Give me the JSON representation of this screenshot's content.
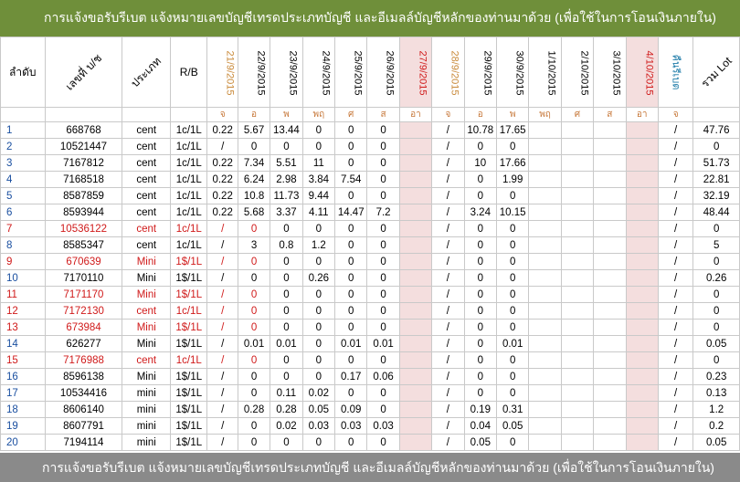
{
  "top_banner": "การแจ้งขอรับรีเบต   แจ้งหมายเลขบัญชีเทรดประเภทบัญชี และอีเมลล์บัญชีหลักของท่านมาด้วย   (เพื่อใช้ในการโอนเงินภายใน)",
  "bottom_banner": "การแจ้งขอรับรีเบต   แจ้งหมายเลขบัญชีเทรดประเภทบัญชี และอีเมลล์บัญชีหลักของท่านมาด้วย   (เพื่อใช้ในการโอนเงินภายใน)",
  "headers": {
    "index": "ลำดับ",
    "account": "เลขที่ บ/ช",
    "type": "ประเภท",
    "rb": "R/B",
    "dates": [
      {
        "label": "21/9/2015",
        "tone": "orange",
        "day": "จ"
      },
      {
        "label": "22/9/2015",
        "tone": "black",
        "day": "อ"
      },
      {
        "label": "23/9/2015",
        "tone": "black",
        "day": "พ"
      },
      {
        "label": "24/9/2015",
        "tone": "black",
        "day": "พฤ"
      },
      {
        "label": "25/9/2015",
        "tone": "black",
        "day": "ศ"
      },
      {
        "label": "26/9/2015",
        "tone": "black",
        "day": "ส"
      },
      {
        "label": "27/9/2015",
        "tone": "red",
        "day": "อา"
      },
      {
        "label": "28/9/2015",
        "tone": "orange",
        "day": "จ"
      },
      {
        "label": "29/9/2015",
        "tone": "black",
        "day": "อ"
      },
      {
        "label": "30/9/2015",
        "tone": "black",
        "day": "พ"
      },
      {
        "label": "1/10/2015",
        "tone": "black",
        "day": "พฤ"
      },
      {
        "label": "2/10/2015",
        "tone": "black",
        "day": "ศ"
      },
      {
        "label": "3/10/2015",
        "tone": "black",
        "day": "ส"
      },
      {
        "label": "4/10/2015",
        "tone": "red",
        "day": "อา"
      },
      {
        "label": "คืนรีเบต",
        "tone": "blue",
        "day": "จ"
      }
    ],
    "total": "รวม Lot"
  },
  "rows": [
    {
      "no": "1",
      "acct": "668768",
      "type": "cent",
      "rb": "1c/1L",
      "red": false,
      "v": [
        "0.22",
        "5.67",
        "13.44",
        "0",
        "0",
        "0",
        "",
        "/",
        "10.78",
        "17.65",
        "",
        "",
        "",
        "",
        "/"
      ],
      "total": "47.76"
    },
    {
      "no": "2",
      "acct": "10521447",
      "type": "cent",
      "rb": "1c/1L",
      "red": false,
      "v": [
        "/",
        "0",
        "0",
        "0",
        "0",
        "0",
        "",
        "/",
        "0",
        "0",
        "",
        "",
        "",
        "",
        "/"
      ],
      "total": "0"
    },
    {
      "no": "3",
      "acct": "7167812",
      "type": "cent",
      "rb": "1c/1L",
      "red": false,
      "v": [
        "0.22",
        "7.34",
        "5.51",
        "11",
        "0",
        "0",
        "",
        "/",
        "10",
        "17.66",
        "",
        "",
        "",
        "",
        "/"
      ],
      "total": "51.73"
    },
    {
      "no": "4",
      "acct": "7168518",
      "type": "cent",
      "rb": "1c/1L",
      "red": false,
      "v": [
        "0.22",
        "6.24",
        "2.98",
        "3.84",
        "7.54",
        "0",
        "",
        "/",
        "0",
        "1.99",
        "",
        "",
        "",
        "",
        "/"
      ],
      "total": "22.81"
    },
    {
      "no": "5",
      "acct": "8587859",
      "type": "cent",
      "rb": "1c/1L",
      "red": false,
      "v": [
        "0.22",
        "10.8",
        "11.73",
        "9.44",
        "0",
        "0",
        "",
        "/",
        "0",
        "0",
        "",
        "",
        "",
        "",
        "/"
      ],
      "total": "32.19"
    },
    {
      "no": "6",
      "acct": "8593944",
      "type": "cent",
      "rb": "1c/1L",
      "red": false,
      "v": [
        "0.22",
        "5.68",
        "3.37",
        "4.11",
        "14.47",
        "7.2",
        "",
        "/",
        "3.24",
        "10.15",
        "",
        "",
        "",
        "",
        "/"
      ],
      "total": "48.44"
    },
    {
      "no": "7",
      "acct": "10536122",
      "type": "cent",
      "rb": "1c/1L",
      "red": true,
      "v": [
        "/",
        "0",
        "0",
        "0",
        "0",
        "0",
        "",
        "/",
        "0",
        "0",
        "",
        "",
        "",
        "",
        "/"
      ],
      "total": "0"
    },
    {
      "no": "8",
      "acct": "8585347",
      "type": "cent",
      "rb": "1c/1L",
      "red": false,
      "v": [
        "/",
        "3",
        "0.8",
        "1.2",
        "0",
        "0",
        "",
        "/",
        "0",
        "0",
        "",
        "",
        "",
        "",
        "/"
      ],
      "total": "5"
    },
    {
      "no": "9",
      "acct": "670639",
      "type": "Mini",
      "rb": "1$/1L",
      "red": true,
      "v": [
        "/",
        "0",
        "0",
        "0",
        "0",
        "0",
        "",
        "/",
        "0",
        "0",
        "",
        "",
        "",
        "",
        "/"
      ],
      "total": "0"
    },
    {
      "no": "10",
      "acct": "7170110",
      "type": "Mini",
      "rb": "1$/1L",
      "red": false,
      "v": [
        "/",
        "0",
        "0",
        "0.26",
        "0",
        "0",
        "",
        "/",
        "0",
        "0",
        "",
        "",
        "",
        "",
        "/"
      ],
      "total": "0.26"
    },
    {
      "no": "11",
      "acct": "7171170",
      "type": "Mini",
      "rb": "1$/1L",
      "red": true,
      "v": [
        "/",
        "0",
        "0",
        "0",
        "0",
        "0",
        "",
        "/",
        "0",
        "0",
        "",
        "",
        "",
        "",
        "/"
      ],
      "total": "0"
    },
    {
      "no": "12",
      "acct": "7172130",
      "type": "cent",
      "rb": "1c/1L",
      "red": true,
      "v": [
        "/",
        "0",
        "0",
        "0",
        "0",
        "0",
        "",
        "/",
        "0",
        "0",
        "",
        "",
        "",
        "",
        "/"
      ],
      "total": "0"
    },
    {
      "no": "13",
      "acct": "673984",
      "type": "Mini",
      "rb": "1$/1L",
      "red": true,
      "v": [
        "/",
        "0",
        "0",
        "0",
        "0",
        "0",
        "",
        "/",
        "0",
        "0",
        "",
        "",
        "",
        "",
        "/"
      ],
      "total": "0"
    },
    {
      "no": "14",
      "acct": "626277",
      "type": "Mini",
      "rb": "1$/1L",
      "red": false,
      "v": [
        "/",
        "0.01",
        "0.01",
        "0",
        "0.01",
        "0.01",
        "",
        "/",
        "0",
        "0.01",
        "",
        "",
        "",
        "",
        "/"
      ],
      "total": "0.05"
    },
    {
      "no": "15",
      "acct": "7176988",
      "type": "cent",
      "rb": "1c/1L",
      "red": true,
      "v": [
        "/",
        "0",
        "0",
        "0",
        "0",
        "0",
        "",
        "/",
        "0",
        "0",
        "",
        "",
        "",
        "",
        "/"
      ],
      "total": "0"
    },
    {
      "no": "16",
      "acct": "8596138",
      "type": "Mini",
      "rb": "1$/1L",
      "red": false,
      "v": [
        "/",
        "0",
        "0",
        "0",
        "0.17",
        "0.06",
        "",
        "/",
        "0",
        "0",
        "",
        "",
        "",
        "",
        "/"
      ],
      "total": "0.23"
    },
    {
      "no": "17",
      "acct": "10534416",
      "type": "mini",
      "rb": "1$/1L",
      "red": false,
      "v": [
        "/",
        "0",
        "0.11",
        "0.02",
        "0",
        "0",
        "",
        "/",
        "0",
        "0",
        "",
        "",
        "",
        "",
        "/"
      ],
      "total": "0.13"
    },
    {
      "no": "18",
      "acct": "8606140",
      "type": "mini",
      "rb": "1$/1L",
      "red": false,
      "v": [
        "/",
        "0.28",
        "0.28",
        "0.05",
        "0.09",
        "0",
        "",
        "/",
        "0.19",
        "0.31",
        "",
        "",
        "",
        "",
        "/"
      ],
      "total": "1.2"
    },
    {
      "no": "19",
      "acct": "8607791",
      "type": "mini",
      "rb": "1$/1L",
      "red": false,
      "v": [
        "/",
        "0",
        "0.02",
        "0.03",
        "0.03",
        "0.03",
        "",
        "/",
        "0.04",
        "0.05",
        "",
        "",
        "",
        "",
        "/"
      ],
      "total": "0.2"
    },
    {
      "no": "20",
      "acct": "7194114",
      "type": "mini",
      "rb": "1$/1L",
      "red": false,
      "v": [
        "/",
        "0",
        "0",
        "0",
        "0",
        "0",
        "",
        "/",
        "0.05",
        "0",
        "",
        "",
        "",
        "",
        "/"
      ],
      "total": "0.05"
    }
  ]
}
